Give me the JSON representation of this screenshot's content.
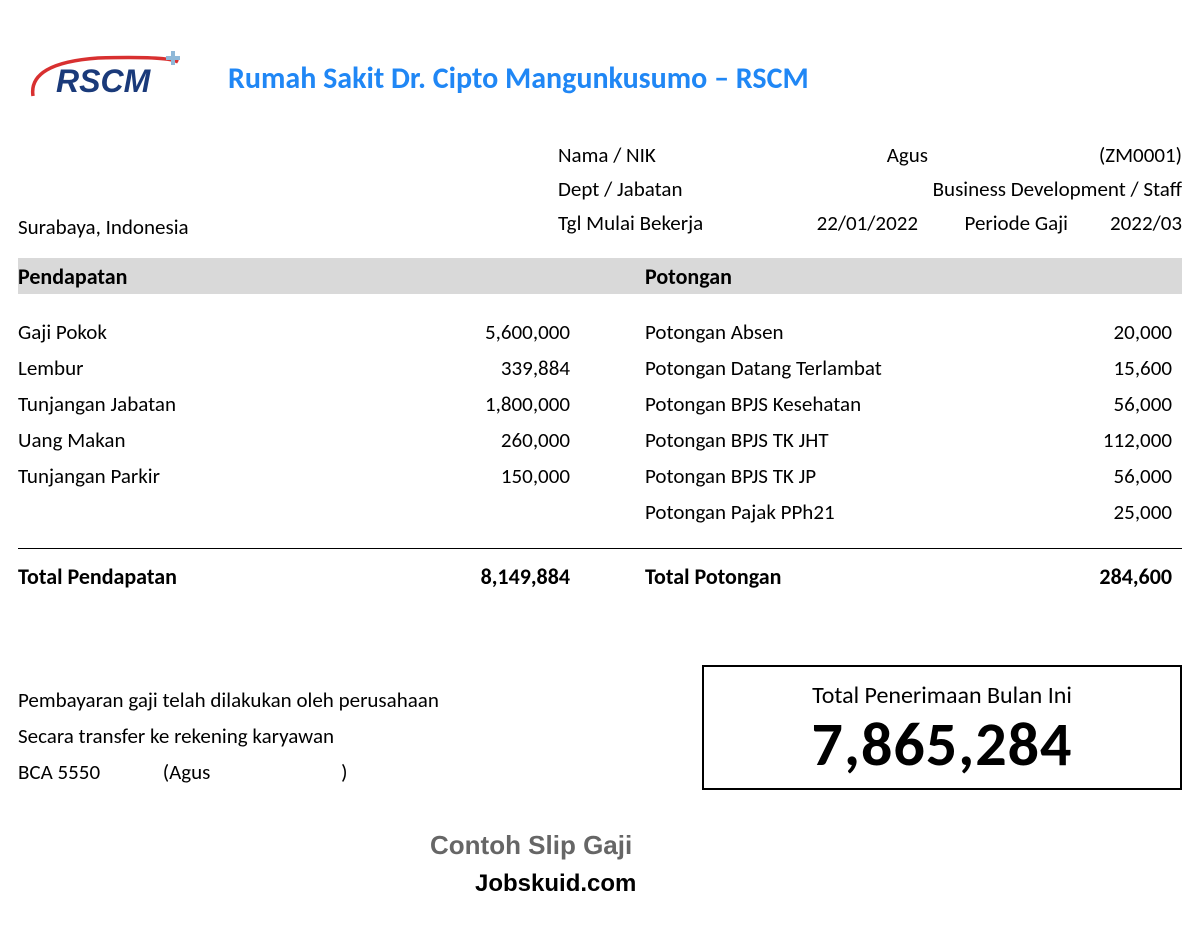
{
  "logo": {
    "text": "RSCM",
    "text_color": "#1a3a7a",
    "arc_color": "#d83030",
    "plus_color": "#8fb8d8"
  },
  "title": "Rumah Sakit Dr. Cipto Mangunkusumo – RSCM",
  "title_color": "#2087f5",
  "location": "Surabaya, Indonesia",
  "employee": {
    "name_label": "Nama / NIK",
    "name": "Agus",
    "nik": "(ZM0001)",
    "dept_label": "Dept / Jabatan",
    "dept": "Business Development / Staff",
    "start_label": "Tgl Mulai Bekerja",
    "start_date": "22/01/2022",
    "period_label": "Periode Gaji",
    "period": "2022/03"
  },
  "sections": {
    "income_header": "Pendapatan",
    "deduction_header": "Potongan"
  },
  "income": [
    {
      "label": "Gaji Pokok",
      "value": "5,600,000"
    },
    {
      "label": "Lembur",
      "value": "339,884"
    },
    {
      "label": "Tunjangan Jabatan",
      "value": "1,800,000"
    },
    {
      "label": "Uang Makan",
      "value": "260,000"
    },
    {
      "label": "Tunjangan Parkir",
      "value": "150,000"
    }
  ],
  "deductions": [
    {
      "label": "Potongan Absen",
      "value": "20,000"
    },
    {
      "label": "Potongan Datang Terlambat",
      "value": "15,600"
    },
    {
      "label": "Potongan BPJS Kesehatan",
      "value": "56,000"
    },
    {
      "label": "Potongan BPJS TK JHT",
      "value": "112,000"
    },
    {
      "label": "Potongan BPJS TK JP",
      "value": "56,000"
    },
    {
      "label": "Potongan Pajak PPh21",
      "value": "25,000"
    }
  ],
  "totals": {
    "income_label": "Total Pendapatan",
    "income_value": "8,149,884",
    "deduction_label": "Total Potongan",
    "deduction_value": "284,600"
  },
  "payment_note": {
    "line1": "Pembayaran gaji telah dilakukan oleh perusahaan",
    "line2": "Secara transfer ke rekening karyawan",
    "bank": "BCA 5550",
    "account_open": "(Agus",
    "account_close": ")"
  },
  "net": {
    "label": "Total Penerimaan Bulan Ini",
    "value": "7,865,284"
  },
  "watermark": {
    "line1": "Contoh Slip Gaji",
    "line2": "Jobskuid.com"
  },
  "colors": {
    "header_bg": "#d9d9d9",
    "text": "#000000",
    "background": "#ffffff"
  }
}
